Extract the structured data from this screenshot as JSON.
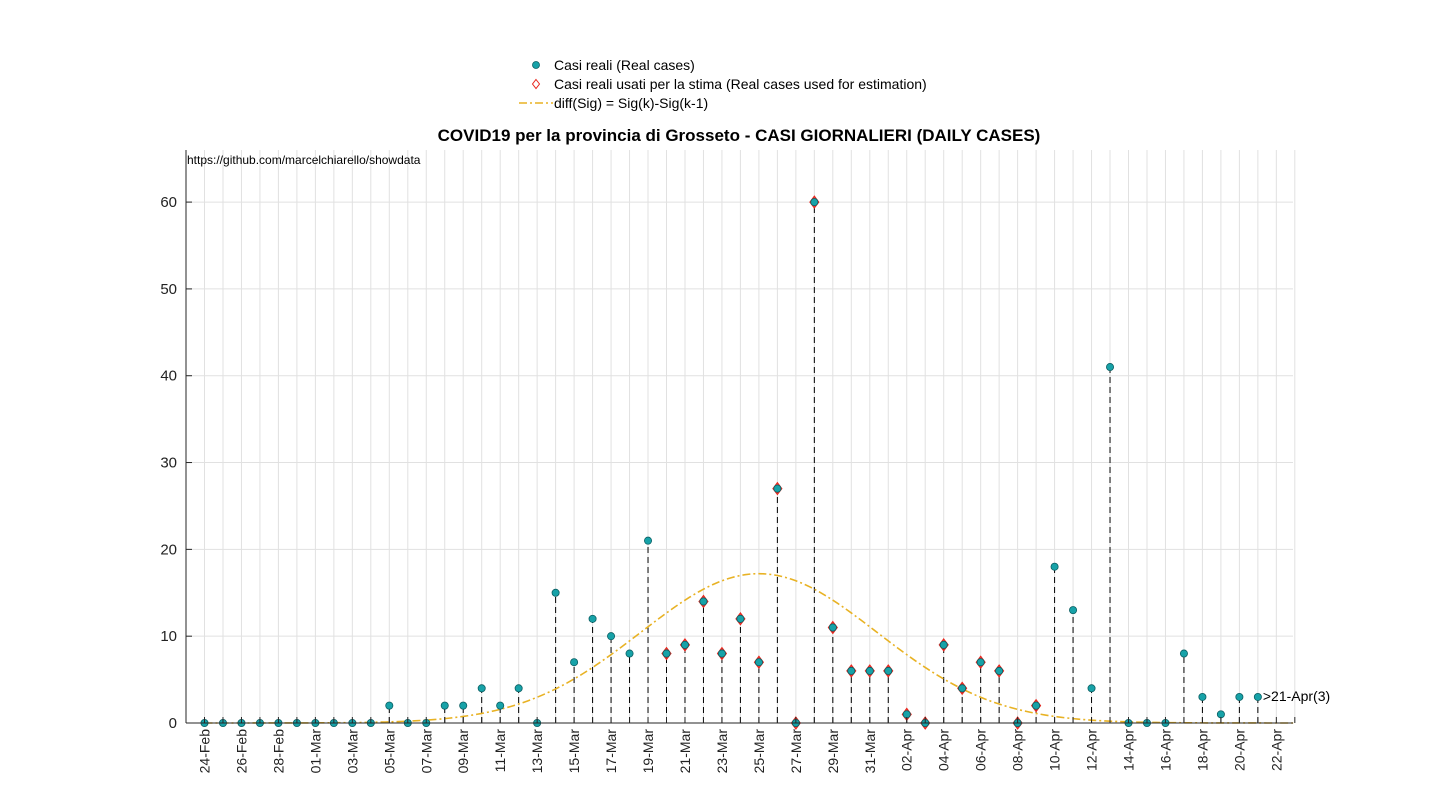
{
  "chart_data": {
    "type": "scatter",
    "title": "COVID19 per la provincia di Grosseto - CASI GIORNALIERI (DAILY CASES)",
    "source_text": "https://github.com/marcelchiarello/showdata",
    "xlabel": "",
    "ylabel": "",
    "ylim": [
      0,
      66
    ],
    "yticks": [
      0,
      10,
      20,
      30,
      40,
      50,
      60
    ],
    "grid": true,
    "legend_position": "top-center",
    "x_tick_labels": [
      "24-Feb",
      "26-Feb",
      "28-Feb",
      "01-Mar",
      "03-Mar",
      "05-Mar",
      "07-Mar",
      "09-Mar",
      "11-Mar",
      "13-Mar",
      "15-Mar",
      "17-Mar",
      "19-Mar",
      "21-Mar",
      "23-Mar",
      "25-Mar",
      "27-Mar",
      "29-Mar",
      "31-Mar",
      "02-Apr",
      "04-Apr",
      "06-Apr",
      "08-Apr",
      "10-Apr",
      "12-Apr",
      "14-Apr",
      "16-Apr",
      "18-Apr",
      "20-Apr",
      "22-Apr"
    ],
    "dates": [
      "24-Feb",
      "25-Feb",
      "26-Feb",
      "27-Feb",
      "28-Feb",
      "29-Feb",
      "01-Mar",
      "02-Mar",
      "03-Mar",
      "04-Mar",
      "05-Mar",
      "06-Mar",
      "07-Mar",
      "08-Mar",
      "09-Mar",
      "10-Mar",
      "11-Mar",
      "12-Mar",
      "13-Mar",
      "14-Mar",
      "15-Mar",
      "16-Mar",
      "17-Mar",
      "18-Mar",
      "19-Mar",
      "20-Mar",
      "21-Mar",
      "22-Mar",
      "23-Mar",
      "24-Mar",
      "25-Mar",
      "26-Mar",
      "27-Mar",
      "28-Mar",
      "29-Mar",
      "30-Mar",
      "31-Mar",
      "01-Apr",
      "02-Apr",
      "03-Apr",
      "04-Apr",
      "05-Apr",
      "06-Apr",
      "07-Apr",
      "08-Apr",
      "09-Apr",
      "10-Apr",
      "11-Apr",
      "12-Apr",
      "13-Apr",
      "14-Apr",
      "15-Apr",
      "16-Apr",
      "17-Apr",
      "18-Apr",
      "19-Apr",
      "20-Apr",
      "21-Apr"
    ],
    "series": [
      {
        "name": "Casi reali (Real cases)",
        "marker": "circle",
        "color": "#17a2a8",
        "values": [
          0,
          0,
          0,
          0,
          0,
          0,
          0,
          0,
          0,
          0,
          2,
          0,
          0,
          2,
          2,
          4,
          2,
          4,
          0,
          15,
          7,
          12,
          10,
          8,
          21,
          8,
          9,
          14,
          8,
          12,
          7,
          27,
          0,
          60,
          11,
          6,
          6,
          6,
          1,
          0,
          9,
          4,
          7,
          6,
          0,
          2,
          18,
          13,
          4,
          41,
          0,
          0,
          0,
          8,
          3,
          1,
          3,
          3
        ]
      },
      {
        "name": "Casi reali usati per la stima (Real cases used for estimation)",
        "marker": "diamond",
        "color": "#e8261d",
        "dates": [
          "20-Mar",
          "21-Mar",
          "22-Mar",
          "23-Mar",
          "24-Mar",
          "25-Mar",
          "26-Mar",
          "27-Mar",
          "28-Mar",
          "29-Mar",
          "30-Mar",
          "31-Mar",
          "01-Apr",
          "02-Apr",
          "03-Apr",
          "04-Apr",
          "05-Apr",
          "06-Apr",
          "07-Apr",
          "08-Apr",
          "09-Apr"
        ],
        "values": [
          8,
          9,
          14,
          8,
          12,
          7,
          27,
          0,
          60,
          11,
          6,
          6,
          6,
          1,
          0,
          9,
          4,
          7,
          6,
          0,
          2
        ]
      },
      {
        "name": "diff(Sig) = Sig(k)-Sig(k-1)",
        "style": "dash-dot",
        "color": "#e8b224",
        "peak_date": "25-Mar",
        "peak_value": 17.2
      }
    ],
    "annotations": [
      {
        "text": ">21-Apr(3)",
        "date": "21-Apr",
        "value": 3
      }
    ]
  }
}
